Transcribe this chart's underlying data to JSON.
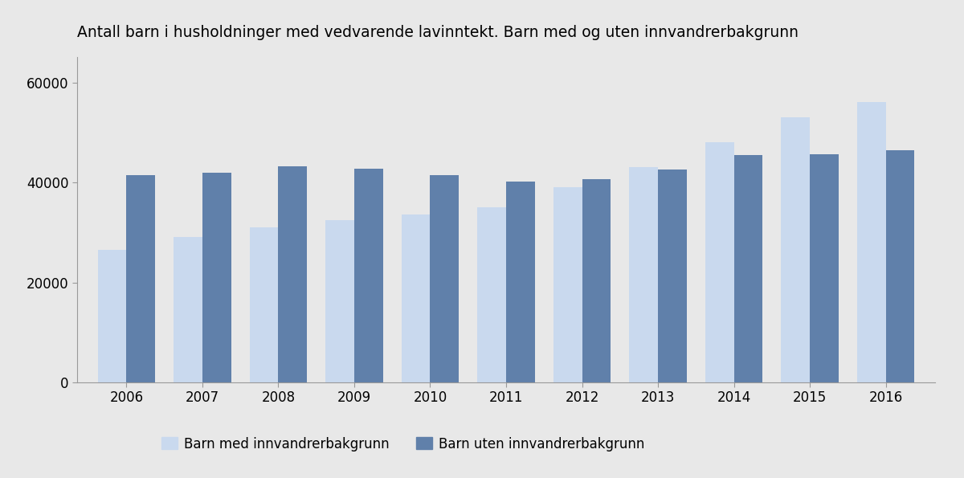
{
  "title": "Antall barn i husholdninger med vedvarende lavinntekt. Barn med og uten innvandrerbakgrunn",
  "years": [
    2006,
    2007,
    2008,
    2009,
    2010,
    2011,
    2012,
    2013,
    2014,
    2015,
    2016
  ],
  "med_innvandrer": [
    26500,
    29000,
    31000,
    32500,
    33500,
    35000,
    39000,
    43000,
    48000,
    53000,
    56000
  ],
  "uten_innvandrer": [
    41500,
    42000,
    43200,
    42700,
    41500,
    40200,
    40700,
    42500,
    45500,
    45700,
    46500
  ],
  "color_med": "#c9d9ee",
  "color_uten": "#6080aa",
  "background_color": "#e8e8e8",
  "legend_med": "Barn med innvandrerbakgrunn",
  "legend_uten": "Barn uten innvandrerbakgrunn",
  "ylim": [
    0,
    65000
  ],
  "yticks": [
    0,
    20000,
    40000,
    60000
  ],
  "bar_width": 0.38
}
